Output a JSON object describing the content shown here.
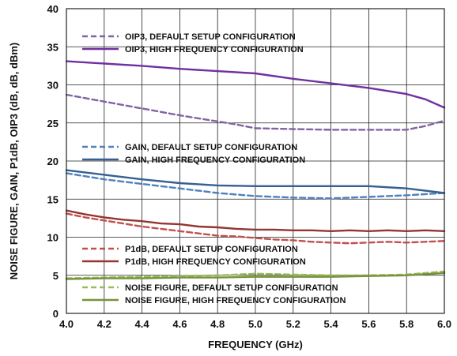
{
  "chart_data": {
    "type": "line",
    "xlabel": "FREQUENCY (GHz)",
    "ylabel": "NOISE FIGURE, GAIN, P1dB, OIP3 (dB, dB, dBm)",
    "xlim": [
      4.0,
      6.0
    ],
    "ylim": [
      0,
      40
    ],
    "x_ticks": [
      "4.0",
      "4.2",
      "4.4",
      "4.6",
      "4.8",
      "5.0",
      "5.2",
      "5.4",
      "5.6",
      "5.8",
      "6.0"
    ],
    "y_ticks": [
      "0",
      "5",
      "10",
      "15",
      "20",
      "25",
      "30",
      "35",
      "40"
    ],
    "grid": true,
    "series": [
      {
        "name": "OIP3, DEFAULT SETUP CONFIGURATION",
        "color": "#8064a2",
        "dashed": true,
        "x": [
          4.0,
          4.2,
          4.4,
          4.6,
          4.8,
          4.9,
          5.0,
          5.2,
          5.4,
          5.6,
          5.8,
          5.9,
          6.0
        ],
        "y": [
          28.7,
          27.8,
          26.9,
          26.0,
          25.2,
          24.8,
          24.3,
          24.2,
          24.1,
          24.1,
          24.1,
          24.6,
          25.3
        ]
      },
      {
        "name": "OIP3, HIGH FREQUENCY CONFIGURATION",
        "color": "#7030a0",
        "dashed": false,
        "x": [
          4.0,
          4.2,
          4.4,
          4.6,
          4.8,
          5.0,
          5.2,
          5.4,
          5.6,
          5.8,
          5.9,
          6.0
        ],
        "y": [
          33.1,
          32.8,
          32.5,
          32.1,
          31.8,
          31.5,
          30.8,
          30.2,
          29.6,
          28.8,
          28.1,
          27.0
        ]
      },
      {
        "name": "GAIN, DEFAULT SETUP CONFIGURATION",
        "color": "#4f81bd",
        "dashed": true,
        "x": [
          4.0,
          4.2,
          4.4,
          4.6,
          4.8,
          5.0,
          5.2,
          5.4,
          5.6,
          5.8,
          6.0
        ],
        "y": [
          18.4,
          17.6,
          17.0,
          16.4,
          15.8,
          15.4,
          15.2,
          15.1,
          15.3,
          15.5,
          15.8
        ]
      },
      {
        "name": "GAIN, HIGH FREQUENCY CONFIGURATION",
        "color": "#366092",
        "dashed": false,
        "x": [
          4.0,
          4.2,
          4.4,
          4.6,
          4.8,
          5.0,
          5.2,
          5.4,
          5.6,
          5.8,
          6.0
        ],
        "y": [
          18.8,
          18.2,
          17.6,
          17.1,
          16.8,
          16.7,
          16.7,
          16.7,
          16.7,
          16.4,
          15.8
        ]
      },
      {
        "name": "P1dB, DEFAULT SETUP CONFIGURATION",
        "color": "#c0504d",
        "dashed": true,
        "x": [
          4.0,
          4.1,
          4.2,
          4.3,
          4.4,
          4.5,
          4.6,
          4.7,
          4.8,
          4.9,
          5.0,
          5.1,
          5.2,
          5.3,
          5.4,
          5.5,
          5.6,
          5.7,
          5.8,
          5.9,
          6.0
        ],
        "y": [
          13.1,
          12.6,
          12.2,
          11.8,
          11.4,
          11.1,
          10.8,
          10.5,
          10.2,
          10.1,
          9.9,
          9.7,
          9.6,
          9.4,
          9.3,
          9.2,
          9.3,
          9.4,
          9.3,
          9.4,
          9.5
        ]
      },
      {
        "name": "P1dB, HIGH FREQUENCY CONFIGURATION",
        "color": "#943634",
        "dashed": false,
        "x": [
          4.0,
          4.1,
          4.2,
          4.3,
          4.4,
          4.5,
          4.6,
          4.7,
          4.8,
          4.9,
          5.0,
          5.1,
          5.2,
          5.3,
          5.4,
          5.5,
          5.6,
          5.7,
          5.8,
          5.9,
          6.0
        ],
        "y": [
          13.5,
          13.0,
          12.6,
          12.3,
          12.1,
          11.8,
          11.7,
          11.4,
          11.3,
          11.1,
          11.0,
          11.0,
          10.9,
          10.9,
          10.8,
          10.9,
          10.8,
          10.9,
          10.8,
          10.9,
          10.8
        ]
      },
      {
        "name": "NOISE FIGURE, DEFAULT SETUP CONFIGURATION",
        "color": "#9bbb59",
        "dashed": true,
        "x": [
          4.0,
          4.2,
          4.4,
          4.6,
          4.8,
          5.0,
          5.2,
          5.4,
          5.6,
          5.8,
          6.0
        ],
        "y": [
          4.6,
          4.7,
          4.8,
          4.9,
          5.0,
          5.2,
          5.1,
          5.0,
          5.0,
          5.1,
          5.5
        ]
      },
      {
        "name": "NOISE FIGURE, HIGH FREQUENCY CONFIGURATION",
        "color": "#77933c",
        "dashed": false,
        "x": [
          4.0,
          4.2,
          4.4,
          4.6,
          4.8,
          5.0,
          5.2,
          5.4,
          5.6,
          5.8,
          6.0
        ],
        "y": [
          4.5,
          4.6,
          4.6,
          4.7,
          4.7,
          4.8,
          4.8,
          4.8,
          4.9,
          5.0,
          5.3
        ]
      }
    ]
  }
}
